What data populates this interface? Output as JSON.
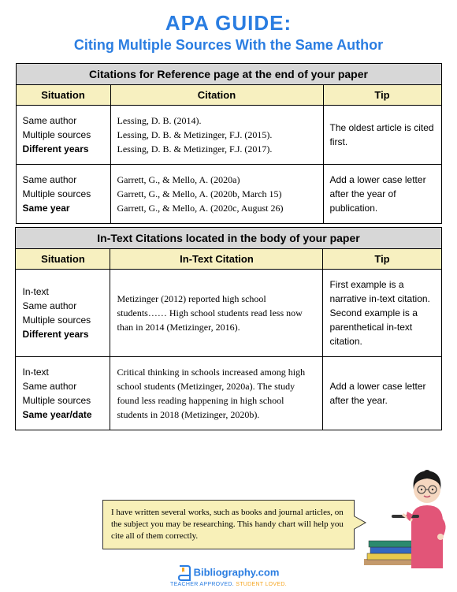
{
  "colors": {
    "title": "#2a7de1",
    "section_hdr_bg": "#d7d7d7",
    "col_hdr_bg": "#f7f0c0",
    "border": "#000000",
    "speech_bg": "#f8f0b8",
    "logo_blue": "#2a7de1",
    "logo_orange": "#f5a623",
    "teacher_shirt": "#e25578",
    "teacher_hair": "#1a1a1a",
    "teacher_skin": "#f5d7c0",
    "book1": "#2b8a6e",
    "book2": "#3468c0",
    "book3": "#e9c94c",
    "desk": "#c49a6c"
  },
  "title": {
    "main": "APA GUIDE:",
    "sub": "Citing Multiple Sources With the Same Author"
  },
  "tables": [
    {
      "section_header": "Citations for Reference page at the end of your paper",
      "columns": [
        "Situation",
        "Citation",
        "Tip"
      ],
      "rows": [
        {
          "situation": [
            "Same author",
            "Multiple sources",
            "Different years"
          ],
          "bold_idx": 2,
          "citation": "Lessing, D. B. (2014).\nLessing, D. B. & Metizinger, F.J. (2015).\nLessing, D. B. & Metizinger, F.J. (2017).",
          "tip": "The oldest article is cited first."
        },
        {
          "situation": [
            "Same author",
            "Multiple sources",
            "Same year"
          ],
          "bold_idx": 2,
          "citation": "Garrett, G., & Mello, A. (2020a)\nGarrett, G., & Mello, A. (2020b, March 15)\nGarrett, G., & Mello, A. (2020c, August 26)",
          "tip": "Add a lower case letter after the year of publication."
        }
      ]
    },
    {
      "section_header": "In-Text Citations located in the body of your paper",
      "columns": [
        "Situation",
        "In-Text Citation",
        "Tip"
      ],
      "rows": [
        {
          "situation": [
            "In-text",
            "Same author",
            "Multiple sources",
            "Different years"
          ],
          "bold_idx": 3,
          "citation": "Metizinger (2012) reported high school students……  High school students read less now than in 2014 (Metizinger, 2016).",
          "tip": "First example is a narrative in-text citation. Second example is a parenthetical in-text citation."
        },
        {
          "situation": [
            "In-text",
            "Same author",
            "Multiple sources",
            "Same year/date"
          ],
          "bold_idx": 3,
          "citation": "Critical thinking in schools increased among high school students (Metizinger, 2020a). The study found less reading happening in high school students in 2018 (Metizinger, 2020b).",
          "tip": "Add a lower case letter after the year."
        }
      ]
    }
  ],
  "speech": "I have written several works, such as books and journal articles, on the subject you may be researching. This handy chart will help you cite all of them correctly.",
  "logo": {
    "text": "Bibliography.com",
    "tagline": "TEACHER APPROVED. STUDENT LOVED."
  }
}
